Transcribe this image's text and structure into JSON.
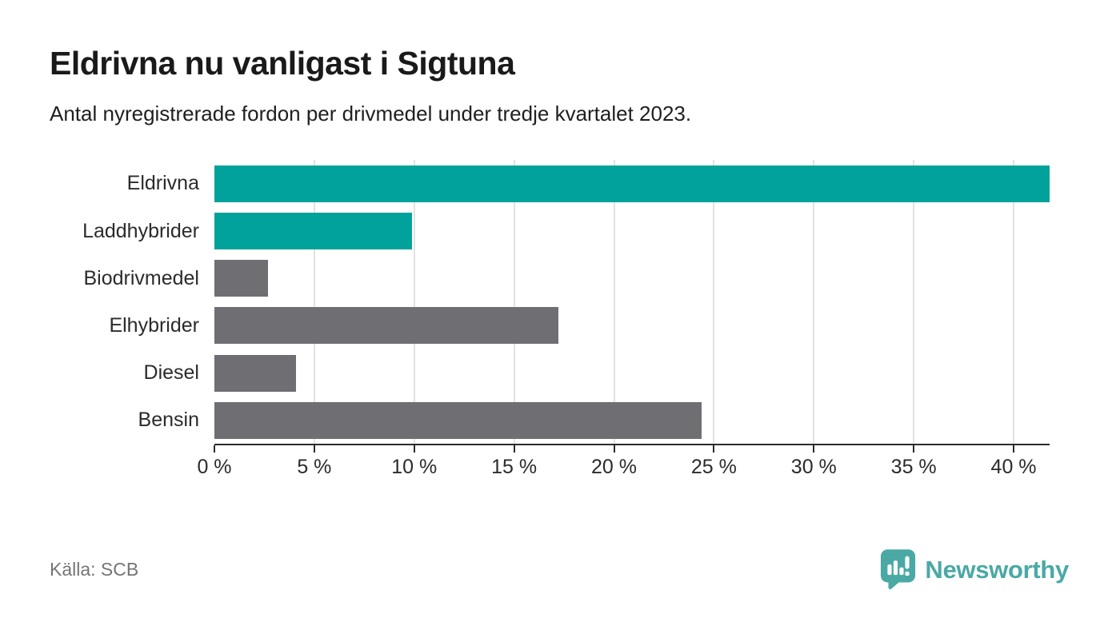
{
  "header": {
    "title": "Eldrivna nu vanligast i Sigtuna",
    "subtitle": "Antal nyregistrerade fordon per drivmedel under tredje kvartalet 2023."
  },
  "chart_data": {
    "type": "bar",
    "orientation": "horizontal",
    "title": "Eldrivna nu vanligast i Sigtuna",
    "subtitle": "Antal nyregistrerade fordon per drivmedel under tredje kvartalet 2023.",
    "categories": [
      "Eldrivna",
      "Laddhybrider",
      "Biodrivmedel",
      "Elhybrider",
      "Diesel",
      "Bensin"
    ],
    "values": [
      41.8,
      9.9,
      2.7,
      17.2,
      4.1,
      24.4
    ],
    "unit": "%",
    "bar_colors": [
      "#00a29b",
      "#00a29b",
      "#6e6e73",
      "#6e6e73",
      "#6e6e73",
      "#6e6e73"
    ],
    "xlim": [
      0,
      41.8
    ],
    "ticks": [
      0,
      5,
      10,
      15,
      20,
      25,
      30,
      35,
      40
    ],
    "tick_labels": [
      "0 %",
      "5 %",
      "10 %",
      "15 %",
      "20 %",
      "25 %",
      "30 %",
      "35 %",
      "40 %"
    ],
    "grid": true,
    "legend": "none",
    "xlabel": "",
    "ylabel": ""
  },
  "footer": {
    "source": "Källa: SCB",
    "brand": "Newsworthy"
  },
  "icons": {
    "brand_logo": "newsworthy-speech-bubble-bar-chart-icon"
  },
  "colors": {
    "highlight_teal": "#00a29b",
    "neutral_gray": "#6e6e73",
    "brand_teal": "#4aa9a5",
    "axis_line": "#2b2b2b",
    "gridline": "#e2e2e2",
    "title_text": "#1a1a1a",
    "muted_text": "#757575",
    "background": "#ffffff"
  }
}
